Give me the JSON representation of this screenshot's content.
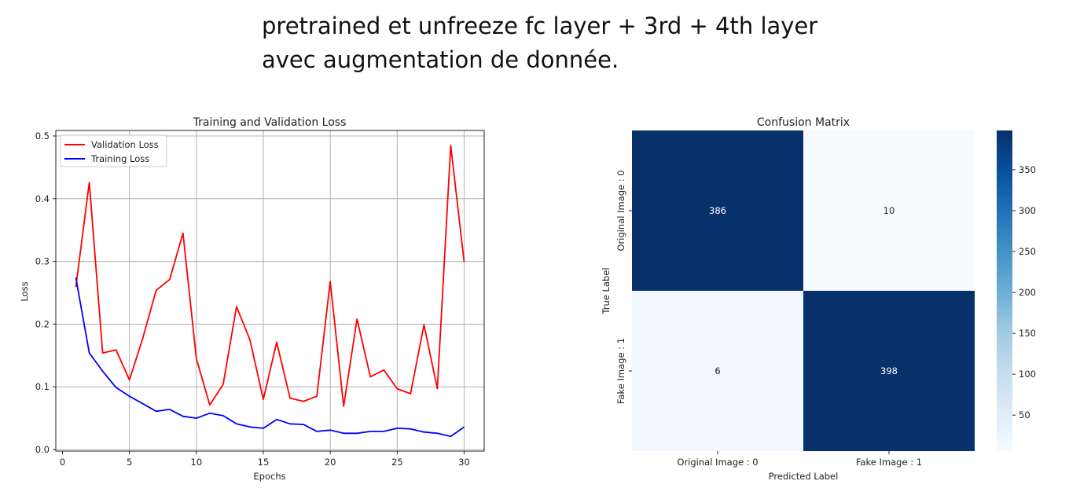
{
  "header": {
    "line1": "pretrained et unfreeze fc layer + 3rd + 4th layer",
    "line2": "avec augmentation de donnée."
  },
  "loss_chart": {
    "title": "Training and Validation Loss",
    "xlabel": "Epochs",
    "ylabel": "Loss",
    "x_ticks": [
      "0",
      "5",
      "10",
      "15",
      "20",
      "25",
      "30"
    ],
    "y_ticks": [
      "0.0",
      "0.1",
      "0.2",
      "0.3",
      "0.4",
      "0.5"
    ],
    "legend": [
      "Validation Loss",
      "Training Loss"
    ]
  },
  "cm_chart": {
    "title": "Confusion Matrix",
    "xlabel": "Predicted Label",
    "ylabel": "True Label",
    "col_labels": [
      "Original Image : 0",
      "Fake Image : 1"
    ],
    "row_labels": [
      "Original Image : 0",
      "Fake Image : 1"
    ],
    "cells": [
      [
        "386",
        "10"
      ],
      [
        "6",
        "398"
      ]
    ],
    "colorbar_ticks": [
      "50",
      "100",
      "150",
      "200",
      "250",
      "300",
      "350"
    ]
  },
  "chart_data": [
    {
      "type": "line",
      "title": "Training and Validation Loss",
      "xlabel": "Epochs",
      "ylabel": "Loss",
      "xlim": [
        -0.5,
        31.5
      ],
      "ylim": [
        0,
        0.5
      ],
      "grid": true,
      "legend_position": "upper-left",
      "x": [
        1,
        2,
        3,
        4,
        5,
        6,
        7,
        8,
        9,
        10,
        11,
        12,
        13,
        14,
        15,
        16,
        17,
        18,
        19,
        20,
        21,
        22,
        23,
        24,
        25,
        26,
        27,
        28,
        29,
        30
      ],
      "series": [
        {
          "name": "Validation Loss",
          "color": "#ff0000",
          "values": [
            0.259,
            0.426,
            0.154,
            0.159,
            0.111,
            0.178,
            0.254,
            0.271,
            0.345,
            0.145,
            0.071,
            0.104,
            0.228,
            0.175,
            0.08,
            0.171,
            0.082,
            0.077,
            0.085,
            0.268,
            0.069,
            0.208,
            0.116,
            0.127,
            0.097,
            0.089,
            0.199,
            0.097,
            0.485,
            0.299
          ]
        },
        {
          "name": "Training Loss",
          "color": "#0000ff",
          "values": [
            0.274,
            0.154,
            0.125,
            0.099,
            0.085,
            0.073,
            0.061,
            0.064,
            0.053,
            0.05,
            0.058,
            0.054,
            0.041,
            0.036,
            0.034,
            0.048,
            0.041,
            0.04,
            0.029,
            0.031,
            0.026,
            0.026,
            0.029,
            0.029,
            0.034,
            0.033,
            0.028,
            0.026,
            0.021,
            0.036
          ]
        }
      ]
    },
    {
      "type": "heatmap",
      "title": "Confusion Matrix",
      "xlabel": "Predicted Label",
      "ylabel": "True Label",
      "categories_x": [
        "Original Image : 0",
        "Fake Image : 1"
      ],
      "categories_y": [
        "Original Image : 0",
        "Fake Image : 1"
      ],
      "values": [
        [
          386,
          10
        ],
        [
          6,
          398
        ]
      ],
      "colormap": "Blues",
      "colorbar_range": [
        6,
        398
      ],
      "colorbar_ticks": [
        50,
        100,
        150,
        200,
        250,
        300,
        350
      ]
    }
  ]
}
